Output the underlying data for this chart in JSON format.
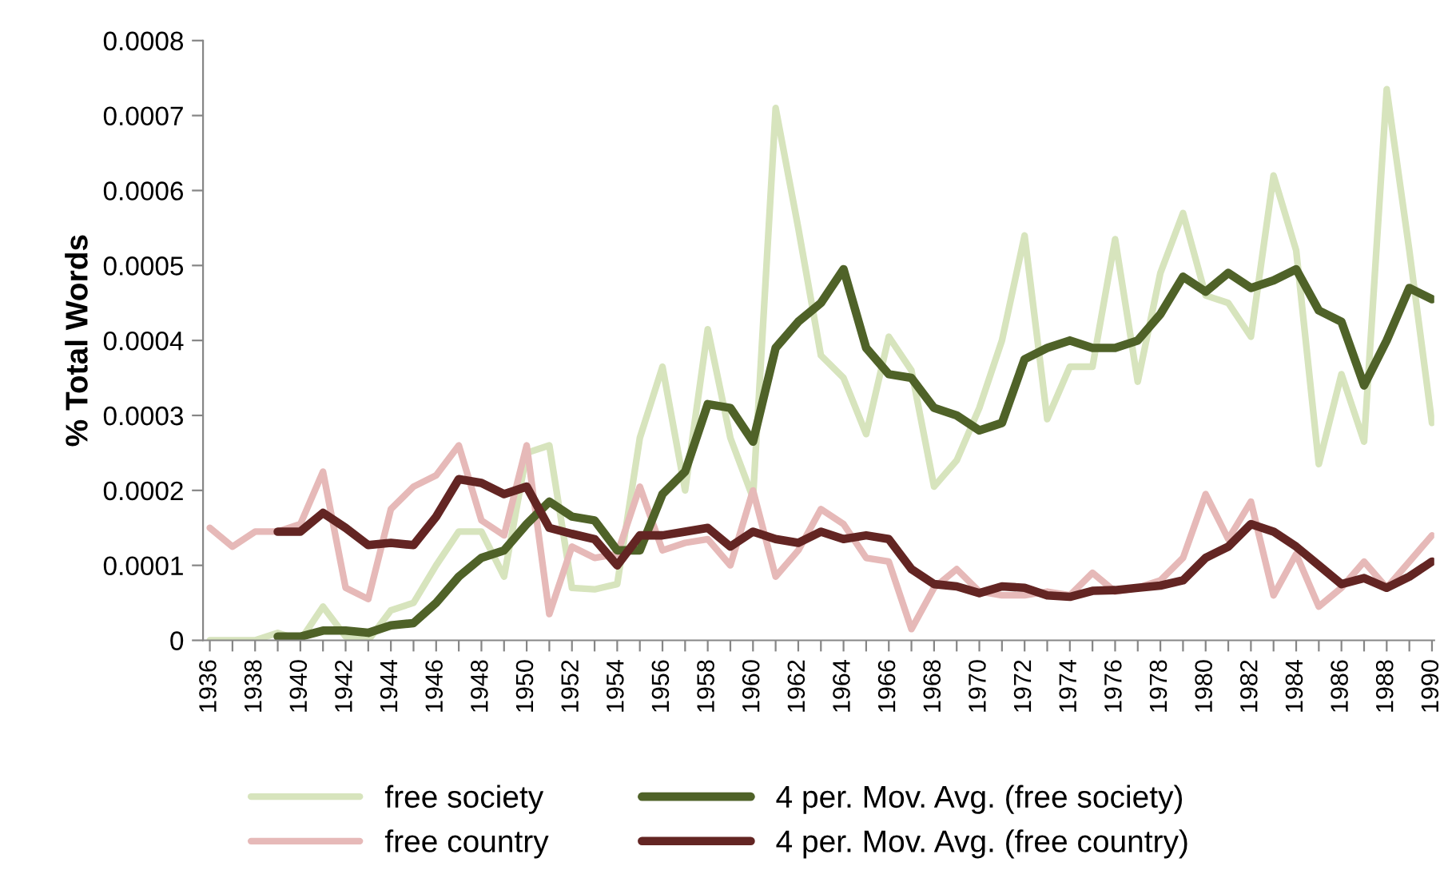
{
  "chart_data": {
    "type": "line",
    "ylabel": "% Total Words",
    "categories": [
      "1936",
      null,
      "1938",
      null,
      "1940",
      null,
      "1942",
      null,
      "1944",
      null,
      "1946",
      null,
      "1948",
      null,
      "1950",
      null,
      "1952",
      null,
      "1954",
      null,
      "1956",
      null,
      "1958",
      null,
      "1960",
      null,
      "1962",
      null,
      "1964",
      null,
      "1966",
      null,
      "1968",
      null,
      "1970",
      null,
      "1972",
      null,
      "1974",
      null,
      "1976",
      null,
      "1978",
      null,
      "1980",
      null,
      "1982",
      null,
      "1984",
      null,
      "1986",
      null,
      "1988",
      null,
      "1990"
    ],
    "series": [
      {
        "name": "free society",
        "color": "#d7e4bd",
        "values": [
          0,
          0,
          0,
          1e-05,
          0,
          4.5e-05,
          5e-06,
          0,
          4e-05,
          5e-05,
          0.0001,
          0.000145,
          0.000145,
          8.5e-05,
          0.00025,
          0.00026,
          7e-05,
          6.8e-05,
          7.5e-05,
          0.00027,
          0.000365,
          0.0002,
          0.000415,
          0.00027,
          0.00019,
          0.00071,
          0.00055,
          0.00038,
          0.00035,
          0.000275,
          0.000405,
          0.00036,
          0.000205,
          0.00024,
          0.00031,
          0.0004,
          0.00054,
          0.000295,
          0.000365,
          0.000365,
          0.000535,
          0.000345,
          0.00049,
          0.00057,
          0.00046,
          0.00045,
          0.000405,
          0.00062,
          0.00052,
          0.000235,
          0.000355,
          0.000265,
          0.000735,
          0.00052,
          0.00029
        ]
      },
      {
        "name": "free country",
        "color": "#e6b9b8",
        "values": [
          0.00015,
          0.000125,
          0.000145,
          0.000145,
          0.000155,
          0.000225,
          7e-05,
          5.5e-05,
          0.000175,
          0.000205,
          0.00022,
          0.00026,
          0.00016,
          0.00014,
          0.00026,
          3.5e-05,
          0.000125,
          0.00011,
          0.000115,
          0.000205,
          0.00012,
          0.00013,
          0.000135,
          0.0001,
          0.0002,
          8.5e-05,
          0.00012,
          0.000175,
          0.000155,
          0.00011,
          0.000105,
          1.5e-05,
          7e-05,
          9.5e-05,
          6.5e-05,
          6e-05,
          6e-05,
          6.5e-05,
          6e-05,
          9e-05,
          6.5e-05,
          7e-05,
          8e-05,
          0.00011,
          0.000195,
          0.000135,
          0.000185,
          6e-05,
          0.000115,
          4.5e-05,
          7e-05,
          0.000105,
          7e-05,
          0.000105,
          0.00014
        ]
      },
      {
        "name": "4 per. Mov. Avg. (free society)",
        "color": "#4f6228",
        "values": [
          null,
          null,
          null,
          5e-06,
          5e-06,
          1.3e-05,
          1.3e-05,
          1e-05,
          2e-05,
          2.3e-05,
          5e-05,
          8.5e-05,
          0.00011,
          0.00012,
          0.000155,
          0.000185,
          0.000165,
          0.00016,
          0.00012,
          0.00012,
          0.000195,
          0.000225,
          0.000315,
          0.00031,
          0.000265,
          0.00039,
          0.000425,
          0.00045,
          0.000495,
          0.00039,
          0.000355,
          0.00035,
          0.00031,
          0.0003,
          0.00028,
          0.00029,
          0.000375,
          0.00039,
          0.0004,
          0.00039,
          0.00039,
          0.0004,
          0.000435,
          0.000485,
          0.000465,
          0.00049,
          0.00047,
          0.00048,
          0.000495,
          0.00044,
          0.000425,
          0.00034,
          0.0004,
          0.00047,
          0.000455
        ]
      },
      {
        "name": "4 per. Mov. Avg. (free country)",
        "color": "#632523",
        "values": [
          null,
          null,
          null,
          0.000145,
          0.000145,
          0.00017,
          0.00015,
          0.000127,
          0.00013,
          0.000127,
          0.000165,
          0.000215,
          0.00021,
          0.000195,
          0.000205,
          0.00015,
          0.000142,
          0.000135,
          0.0001,
          0.00014,
          0.00014,
          0.000145,
          0.00015,
          0.000125,
          0.000145,
          0.000135,
          0.00013,
          0.000145,
          0.000135,
          0.00014,
          0.000135,
          9.5e-05,
          7.5e-05,
          7.2e-05,
          6.3e-05,
          7.2e-05,
          7e-05,
          6e-05,
          5.8e-05,
          6.6e-05,
          6.7e-05,
          7e-05,
          7.3e-05,
          8e-05,
          0.00011,
          0.000125,
          0.000155,
          0.000145,
          0.000125,
          0.0001,
          7.5e-05,
          8.3e-05,
          7e-05,
          8.5e-05,
          0.000105
        ]
      }
    ],
    "ylim": [
      0,
      0.0008
    ],
    "yticks": [
      0,
      0.0001,
      0.0002,
      0.0003,
      0.0004,
      0.0005,
      0.0006,
      0.0007,
      0.0008
    ],
    "grid": false,
    "legend": "bottom",
    "marker": "none",
    "line_style": "solid"
  }
}
